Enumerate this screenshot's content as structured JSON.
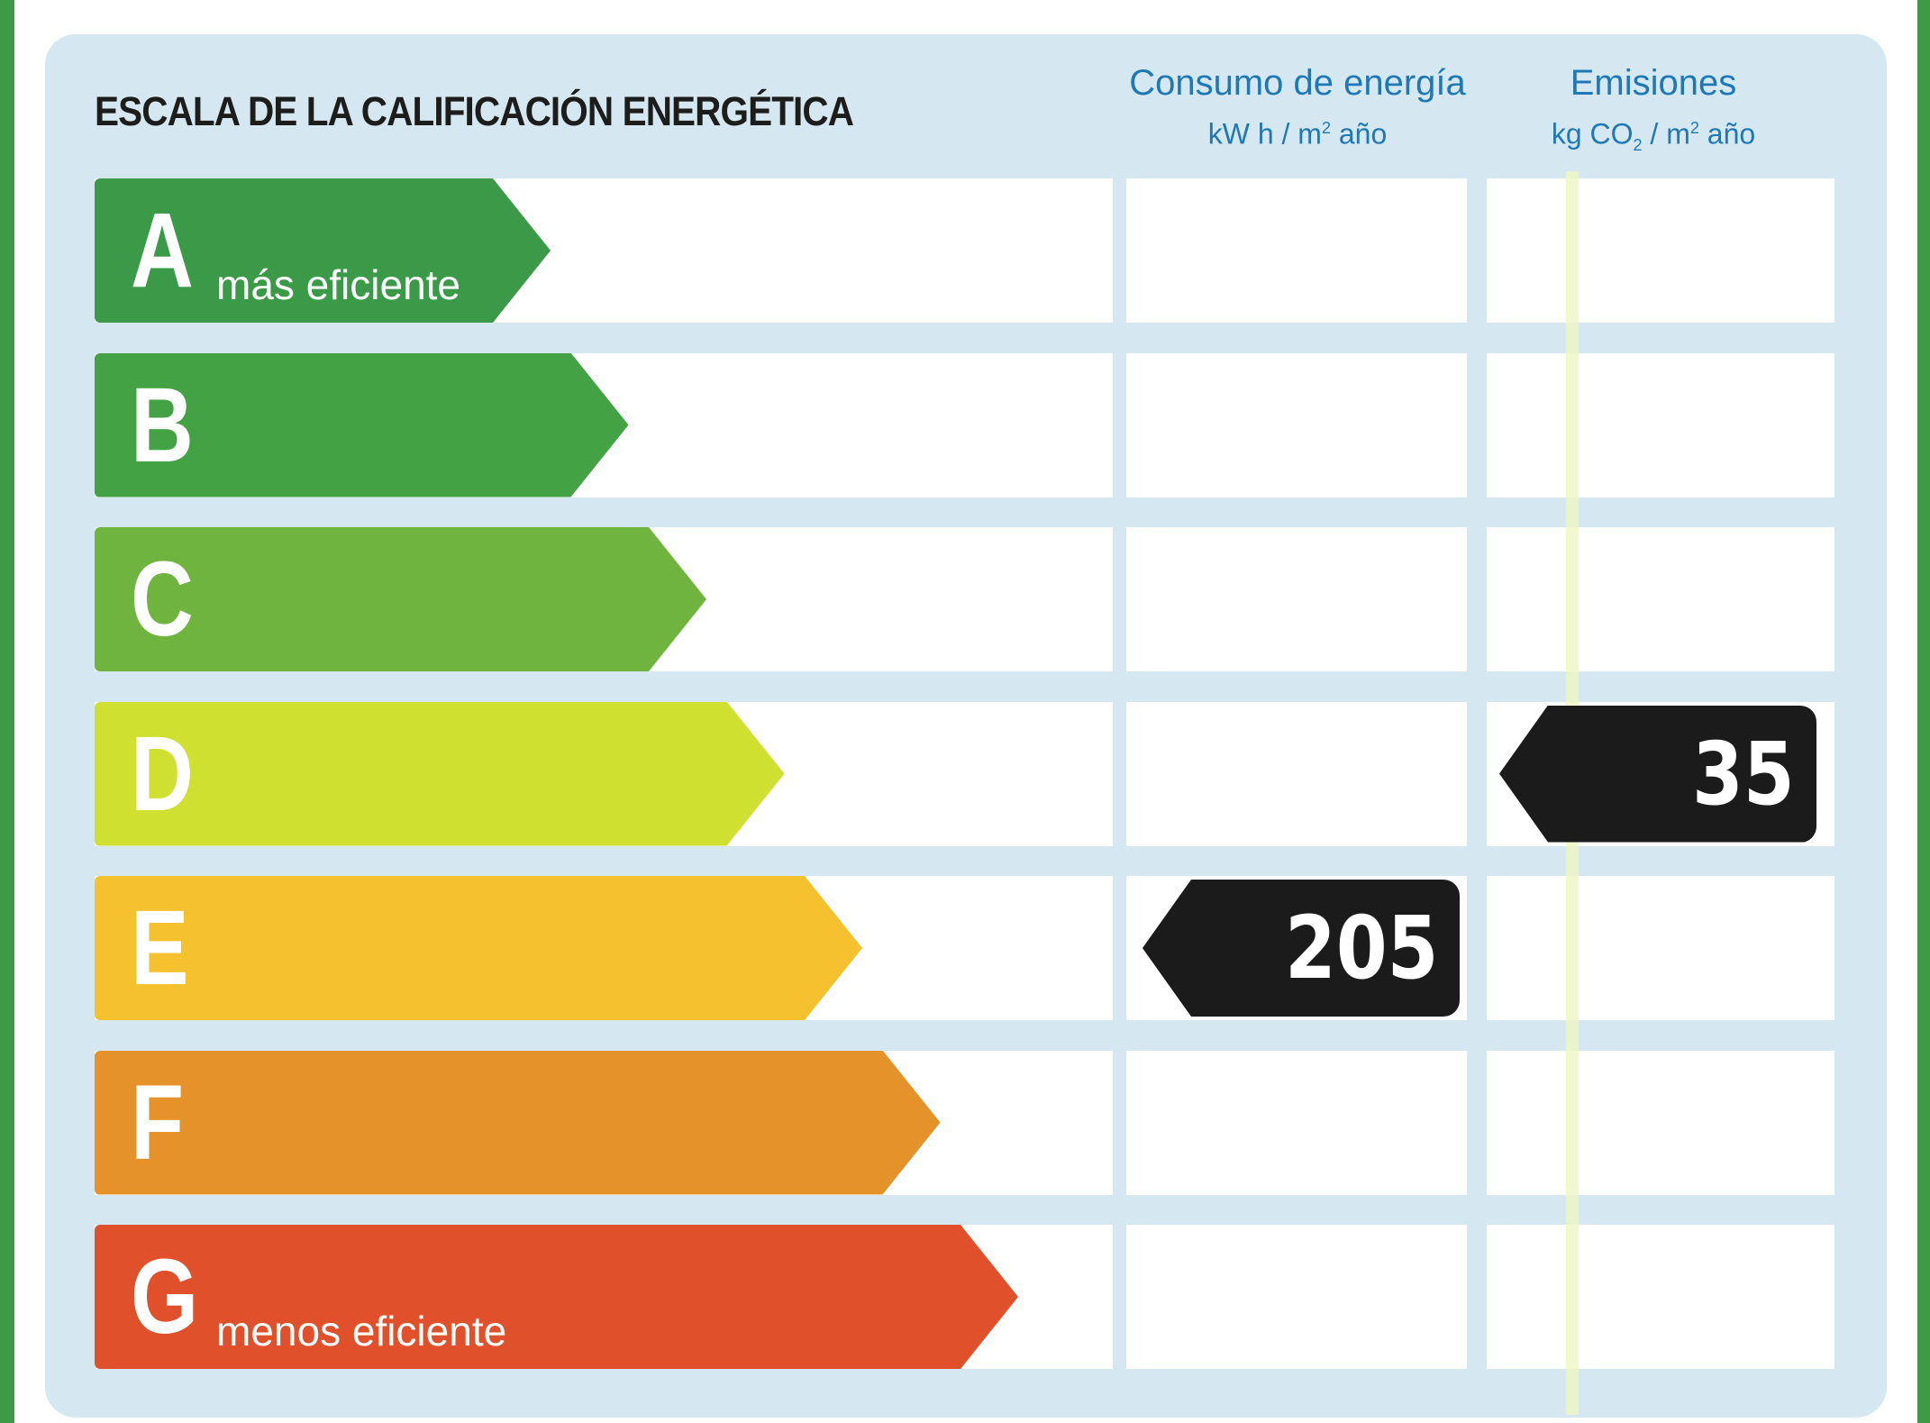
{
  "title": "ESCALA DE LA CALIFICACIÓN ENERGÉTICA",
  "columns": {
    "energy": {
      "heading": "Consumo de energía",
      "unit_pre": "kW h / m",
      "unit_sup": "2",
      "unit_post": " año"
    },
    "emissions": {
      "heading": "Emisiones",
      "unit_pre": "kg CO",
      "unit_sub": "2",
      "unit_mid": " / m",
      "unit_sup": "2",
      "unit_post": " año"
    }
  },
  "scale": [
    {
      "letter": "A",
      "note": "más eficiente",
      "color": "#3a9a47"
    },
    {
      "letter": "B",
      "note": "",
      "color": "#43a243"
    },
    {
      "letter": "C",
      "note": "",
      "color": "#6eb43f"
    },
    {
      "letter": "D",
      "note": "",
      "color": "#cfe030"
    },
    {
      "letter": "E",
      "note": "",
      "color": "#f5c12e"
    },
    {
      "letter": "F",
      "note": "",
      "color": "#e5922a"
    },
    {
      "letter": "G",
      "note": "menos eficiente",
      "color": "#e0502a"
    }
  ],
  "ratings": {
    "energy": {
      "value": "205",
      "class": "E"
    },
    "emissions": {
      "value": "35",
      "class": "D"
    }
  },
  "colors": {
    "indicator": "#1b1b1b",
    "panel": "#d5e8f2",
    "heading_text": "#1f78b6",
    "frame": "#3f9a45"
  }
}
